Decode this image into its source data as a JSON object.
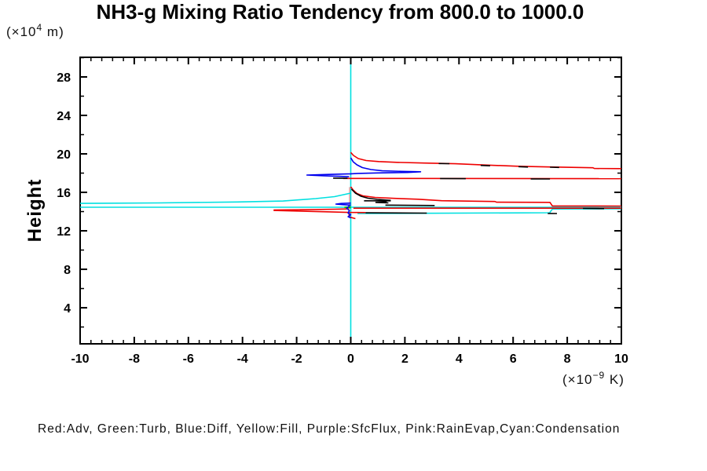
{
  "title": "NH3-g Mixing Ratio Tendency from 800.0 to 1000.0",
  "legend": "Red:Adv, Green:Turb, Blue:Diff, Yellow:Fill, Purple:SfcFlux, Pink:RainEvap,Cyan:Condensation",
  "y_axis": {
    "label": "Height",
    "unit": {
      "pre": "(×10",
      "exp": "4",
      "post": " m)"
    },
    "ticks": [
      4,
      8,
      12,
      16,
      20,
      24,
      28
    ],
    "minor_ticks": [
      2,
      6,
      10,
      14,
      18,
      22,
      26,
      30
    ],
    "range": [
      0.25,
      30.04
    ]
  },
  "x_axis": {
    "unit": {
      "pre": "(×10",
      "exp": "−9",
      "post": " K)"
    },
    "ticks": [
      -10,
      -8,
      -6,
      -4,
      -2,
      0,
      2,
      4,
      6,
      8,
      10
    ],
    "minor_step": 0.4,
    "range": [
      -10,
      10
    ]
  },
  "colors": {
    "red": "#ee0000",
    "green": "#00bb00",
    "blue": "#0000ee",
    "cyan": "#00e0e0",
    "pink": "#ff9e9e",
    "black": "#000000",
    "axis": "#000000"
  },
  "chart_data": {
    "type": "line",
    "title": "NH3-g Mixing Ratio Tendency from 800.0 to 1000.0",
    "xlabel": "(×10⁻⁹ K)",
    "ylabel": "Height (×10⁴ m)",
    "xlim": [
      -10,
      10
    ],
    "ylim": [
      0.25,
      30.04
    ],
    "grid": false,
    "legend_position": "bottom",
    "series": [
      {
        "name": "RainEvap",
        "color": "#ff9e9e",
        "lines": [
          [
            [
              -0.04,
              16.55
            ],
            [
              -0.04,
              14.3
            ]
          ]
        ]
      },
      {
        "name": "Condensation",
        "color": "#00e0e0",
        "lines": [
          [
            [
              0,
              30.0
            ],
            [
              0,
              0.25
            ]
          ],
          [
            [
              -10,
              14.85
            ],
            [
              -7.1,
              14.9
            ],
            [
              -4.2,
              15.0
            ],
            [
              -2.5,
              15.1
            ],
            [
              -1.3,
              15.35
            ],
            [
              -0.6,
              15.55
            ],
            [
              -0.2,
              15.8
            ],
            [
              0,
              15.92
            ]
          ],
          [
            [
              -10,
              14.45
            ],
            [
              10,
              14.45
            ]
          ],
          [
            [
              0.25,
              13.8
            ],
            [
              7.35,
              13.88
            ],
            [
              7.45,
              14.26
            ],
            [
              10,
              14.29
            ]
          ]
        ]
      },
      {
        "name": "Turb",
        "color": "#00bb00",
        "lines": [
          [
            [
              0,
              14.5
            ],
            [
              -0.22,
              14.45
            ],
            [
              0,
              14.4
            ]
          ]
        ]
      },
      {
        "name": "Adv",
        "color": "#ee0000",
        "lines": [
          [
            [
              0,
              20.16
            ],
            [
              0.1,
              19.84
            ],
            [
              0.28,
              19.51
            ],
            [
              0.57,
              19.31
            ],
            [
              1.03,
              19.2
            ],
            [
              1.7,
              19.12
            ],
            [
              2.71,
              19.05
            ],
            [
              3.87,
              18.97
            ],
            [
              5.04,
              18.83
            ],
            [
              6.2,
              18.71
            ],
            [
              7.36,
              18.64
            ],
            [
              8.95,
              18.56
            ],
            [
              9.0,
              18.48
            ],
            [
              10,
              18.47
            ]
          ],
          [
            [
              -0.28,
              17.45
            ],
            [
              10,
              17.42
            ]
          ],
          [
            [
              0,
              16.57
            ],
            [
              0.09,
              16.24
            ],
            [
              0.23,
              15.88
            ],
            [
              0.46,
              15.63
            ],
            [
              0.9,
              15.47
            ],
            [
              1.62,
              15.37
            ],
            [
              2.49,
              15.28
            ],
            [
              3.36,
              15.13
            ],
            [
              5.33,
              15.05
            ],
            [
              5.39,
              14.97
            ],
            [
              7.36,
              14.96
            ],
            [
              7.45,
              14.58
            ],
            [
              10,
              14.57
            ]
          ],
          [
            [
              0.1,
              14.35
            ],
            [
              10,
              14.35
            ]
          ],
          [
            [
              -2.85,
              14.16
            ],
            [
              -0.58,
              14.25
            ],
            [
              -0.06,
              14.28
            ]
          ],
          [
            [
              -2.85,
              14.12
            ],
            [
              -0.75,
              13.97
            ],
            [
              -0.1,
              13.91
            ],
            [
              0.55,
              13.9
            ]
          ],
          [
            [
              -0.06,
              13.8
            ],
            [
              -0.06,
              13.45
            ],
            [
              0.17,
              13.27
            ]
          ]
        ]
      },
      {
        "name": "Diff",
        "color": "#0000ee",
        "lines": [
          [
            [
              0,
              19.59
            ],
            [
              0.09,
              19.18
            ],
            [
              0.23,
              18.86
            ],
            [
              0.43,
              18.57
            ],
            [
              0.75,
              18.37
            ],
            [
              1.16,
              18.24
            ],
            [
              1.86,
              18.18
            ],
            [
              2.58,
              18.14
            ],
            [
              2.09,
              18.07
            ],
            [
              0.99,
              18.02
            ],
            [
              0.26,
              17.97
            ],
            [
              0,
              17.93
            ],
            [
              -0.81,
              17.86
            ],
            [
              -1.62,
              17.8
            ],
            [
              -0.99,
              17.72
            ],
            [
              -0.43,
              17.67
            ],
            [
              -0.06,
              17.62
            ]
          ],
          [
            [
              0,
              14.88
            ],
            [
              -0.35,
              14.84
            ],
            [
              -0.55,
              14.78
            ],
            [
              -0.3,
              14.72
            ],
            [
              0,
              14.67
            ]
          ],
          [
            [
              -0.05,
              14.6
            ],
            [
              -0.15,
              14.35
            ],
            [
              -0.05,
              14.1
            ],
            [
              -0.1,
              13.85
            ],
            [
              0,
              13.67
            ],
            [
              -0.1,
              13.47
            ],
            [
              0,
              13.35
            ]
          ]
        ]
      },
      {
        "name": "black",
        "color": "#000000",
        "lines": [
          [
            [
              3.25,
              19.0
            ],
            [
              3.65,
              18.98
            ]
          ],
          [
            [
              4.8,
              18.8
            ],
            [
              5.15,
              18.76
            ]
          ],
          [
            [
              6.2,
              18.67
            ],
            [
              6.55,
              18.63
            ]
          ],
          [
            [
              7.36,
              18.61
            ],
            [
              7.7,
              18.59
            ]
          ],
          [
            [
              -0.65,
              17.48
            ],
            [
              -0.12,
              17.46
            ]
          ],
          [
            [
              3.3,
              17.44
            ],
            [
              4.25,
              17.42
            ]
          ],
          [
            [
              6.65,
              17.4
            ],
            [
              7.36,
              17.39
            ]
          ],
          [
            [
              0.03,
              16.33
            ],
            [
              0.17,
              15.92
            ],
            [
              0.38,
              15.59
            ],
            [
              0.64,
              15.39
            ],
            [
              0.99,
              15.27
            ],
            [
              1.48,
              15.16
            ]
          ],
          [
            [
              0.49,
              15.12
            ],
            [
              1.48,
              15.12
            ]
          ],
          [
            [
              1.33,
              15.02
            ],
            [
              0.93,
              14.96
            ],
            [
              1.39,
              14.91
            ]
          ],
          [
            [
              1.28,
              14.67
            ],
            [
              3.1,
              14.63
            ]
          ],
          [
            [
              8.58,
              14.33
            ],
            [
              9.36,
              14.31
            ]
          ],
          [
            [
              0.55,
              13.87
            ],
            [
              2.81,
              13.84
            ]
          ],
          [
            [
              7.28,
              13.81
            ],
            [
              7.62,
              13.8
            ]
          ]
        ]
      }
    ]
  }
}
